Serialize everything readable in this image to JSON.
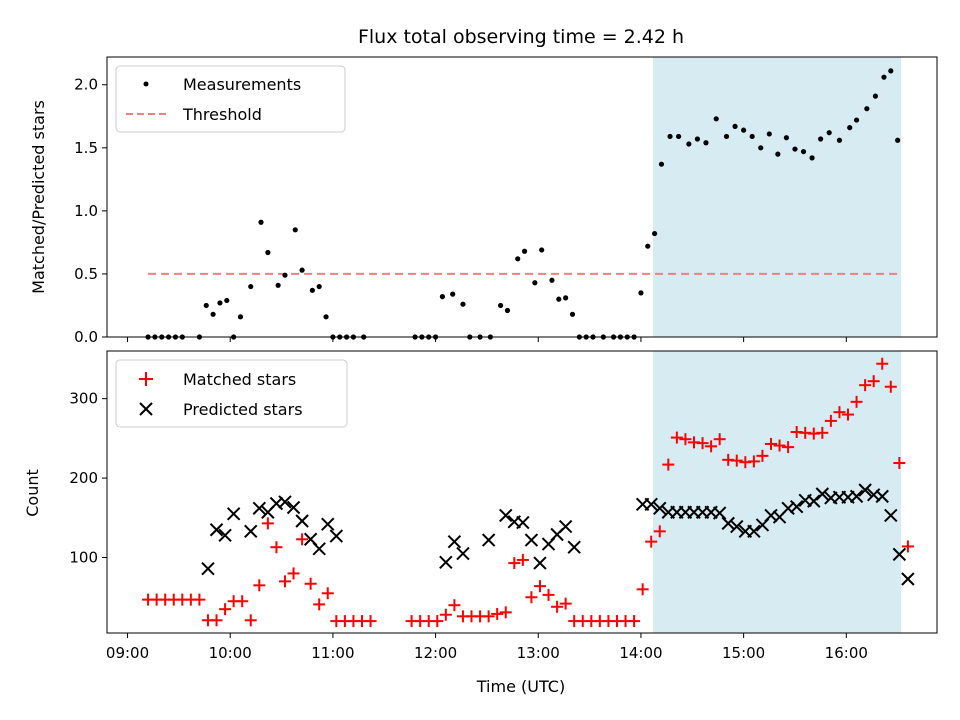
{
  "chart_data": {
    "type": "scatter",
    "title": "Flux total observing time = 2.42 h",
    "xlabel": "Time (UTC)",
    "x_ticks": [
      "09:00",
      "10:00",
      "11:00",
      "12:00",
      "13:00",
      "14:00",
      "15:00",
      "16:00"
    ],
    "highlight_span": {
      "start": "14:07",
      "end": "16:32",
      "color": "#add8e6"
    },
    "top": {
      "ylabel": "Matched/Predicted stars",
      "ylim": [
        0,
        2.22
      ],
      "y_ticks": [
        "0.0",
        "0.5",
        "1.0",
        "1.5",
        "2.0"
      ],
      "legend": [
        "Measurements",
        "Threshold"
      ],
      "legend_position": "upper left",
      "threshold": {
        "value": 0.5,
        "x_start": "09:12",
        "x_end": "16:32",
        "color": "#f08080"
      },
      "measurements": {
        "x": [
          "09:12",
          "09:16",
          "09:20",
          "09:24",
          "09:28",
          "09:32",
          "09:42",
          "09:46",
          "09:50",
          "09:54",
          "09:58",
          "10:02",
          "10:06",
          "10:12",
          "10:18",
          "10:22",
          "10:28",
          "10:32",
          "10:38",
          "10:42",
          "10:48",
          "10:52",
          "10:56",
          "11:00",
          "11:04",
          "11:08",
          "11:12",
          "11:18",
          "11:48",
          "11:52",
          "11:56",
          "12:00",
          "12:04",
          "12:10",
          "12:16",
          "12:20",
          "12:26",
          "12:32",
          "12:38",
          "12:42",
          "12:48",
          "12:52",
          "12:58",
          "13:02",
          "13:08",
          "13:12",
          "13:16",
          "13:20",
          "13:24",
          "13:28",
          "13:32",
          "13:38",
          "13:44",
          "13:48",
          "13:52",
          "13:56",
          "14:00",
          "14:04",
          "14:08",
          "14:12",
          "14:17",
          "14:22",
          "14:28",
          "14:33",
          "14:38",
          "14:44",
          "14:50",
          "14:55",
          "15:00",
          "15:05",
          "15:10",
          "15:15",
          "15:20",
          "15:25",
          "15:30",
          "15:35",
          "15:40",
          "15:45",
          "15:50",
          "15:56",
          "16:02",
          "16:06",
          "16:12",
          "16:17",
          "16:22",
          "16:26",
          "16:30",
          "16:34",
          "16:38"
        ],
        "y": [
          0,
          0,
          0,
          0,
          0,
          0,
          0,
          0.25,
          0.18,
          0.27,
          0.29,
          0,
          0.16,
          0.4,
          0.91,
          0.67,
          0.41,
          0.49,
          0.85,
          0.53,
          0.37,
          0.4,
          0.16,
          0,
          0,
          0,
          0,
          0,
          0,
          0,
          0,
          0,
          0.32,
          0.34,
          0.26,
          0,
          0,
          0,
          0.25,
          0.21,
          0.62,
          0.68,
          0.43,
          0.69,
          0.45,
          0.3,
          0.31,
          0.18,
          0,
          0,
          0,
          0,
          0,
          0,
          0,
          0,
          0.35,
          0.72,
          0.82,
          1.37,
          1.59,
          1.59,
          1.53,
          1.57,
          1.54,
          1.73,
          1.59,
          1.67,
          1.64,
          1.59,
          1.5,
          1.61,
          1.45,
          1.58,
          1.49,
          1.47,
          1.42,
          1.57,
          1.62,
          1.56,
          1.66,
          1.72,
          1.81,
          1.91,
          2.06,
          2.11,
          1.56,
          null,
          null
        ]
      }
    },
    "bottom": {
      "ylabel": "Count",
      "ylim": [
        5,
        360
      ],
      "y_ticks": [
        "100",
        "200",
        "300"
      ],
      "legend": [
        "Matched stars",
        "Predicted stars"
      ],
      "legend_position": "upper left",
      "series": [
        {
          "name": "Matched stars",
          "marker": "+",
          "color": "#ff0000",
          "x": [
            "09:12",
            "09:17",
            "09:22",
            "09:27",
            "09:32",
            "09:37",
            "09:42",
            "09:47",
            "09:52",
            "09:57",
            "10:02",
            "10:07",
            "10:12",
            "10:17",
            "10:22",
            "10:27",
            "10:32",
            "10:37",
            "10:42",
            "10:47",
            "10:52",
            "10:57",
            "11:02",
            "11:07",
            "11:12",
            "11:17",
            "11:22",
            "11:46",
            "11:51",
            "11:56",
            "12:01",
            "12:06",
            "12:11",
            "12:16",
            "12:21",
            "12:26",
            "12:31",
            "12:36",
            "12:41",
            "12:46",
            "12:51",
            "12:56",
            "13:01",
            "13:06",
            "13:11",
            "13:16",
            "13:21",
            "13:26",
            "13:31",
            "13:36",
            "13:41",
            "13:46",
            "13:51",
            "13:56",
            "14:01",
            "14:06",
            "14:11",
            "14:16",
            "14:21",
            "14:26",
            "14:31",
            "14:36",
            "14:41",
            "14:46",
            "14:51",
            "14:56",
            "15:01",
            "15:06",
            "15:11",
            "15:16",
            "15:21",
            "15:26",
            "15:31",
            "15:36",
            "15:41",
            "15:46",
            "15:51",
            "15:56",
            "16:01",
            "16:06",
            "16:11",
            "16:16",
            "16:21",
            "16:26",
            "16:31",
            "16:36"
          ],
          "y": [
            47,
            47,
            47,
            47,
            47,
            47,
            47,
            21,
            21,
            35,
            45,
            45,
            21,
            65,
            143,
            113,
            70,
            80,
            123,
            67,
            41,
            55,
            20,
            20,
            20,
            20,
            20,
            20,
            20,
            20,
            20,
            28,
            40,
            26,
            26,
            26,
            26,
            29,
            31,
            93,
            97,
            50,
            64,
            53,
            38,
            42,
            20,
            20,
            20,
            20,
            20,
            20,
            20,
            20,
            60,
            120,
            133,
            217,
            251,
            249,
            245,
            244,
            240,
            249,
            223,
            222,
            220,
            221,
            228,
            243,
            241,
            239,
            258,
            257,
            256,
            257,
            272,
            283,
            280,
            296,
            317,
            322,
            344,
            315,
            219,
            114
          ]
        },
        {
          "name": "Predicted stars",
          "marker": "x",
          "color": "#000000",
          "x": [
            "09:47",
            "09:52",
            "09:57",
            "10:02",
            "10:12",
            "10:17",
            "10:22",
            "10:27",
            "10:32",
            "10:37",
            "10:42",
            "10:47",
            "10:52",
            "10:57",
            "11:02",
            "12:06",
            "12:11",
            "12:16",
            "12:31",
            "12:41",
            "12:46",
            "12:51",
            "12:56",
            "13:01",
            "13:06",
            "13:11",
            "13:16",
            "13:21",
            "14:01",
            "14:06",
            "14:11",
            "14:16",
            "14:21",
            "14:26",
            "14:31",
            "14:36",
            "14:41",
            "14:46",
            "14:51",
            "14:56",
            "15:01",
            "15:06",
            "15:11",
            "15:16",
            "15:21",
            "15:26",
            "15:31",
            "15:36",
            "15:41",
            "15:46",
            "15:51",
            "15:56",
            "16:01",
            "16:06",
            "16:11",
            "16:16",
            "16:21",
            "16:26",
            "16:31",
            "16:36"
          ],
          "y": [
            86,
            135,
            128,
            155,
            133,
            162,
            157,
            168,
            170,
            163,
            146,
            123,
            111,
            142,
            127,
            94,
            120,
            105,
            122,
            153,
            145,
            144,
            122,
            93,
            117,
            129,
            139,
            113,
            167,
            167,
            162,
            157,
            157,
            157,
            157,
            157,
            157,
            156,
            143,
            139,
            133,
            133,
            141,
            153,
            151,
            162,
            164,
            172,
            171,
            180,
            175,
            176,
            176,
            177,
            185,
            179,
            177,
            153,
            104,
            73
          ]
        }
      ]
    }
  }
}
